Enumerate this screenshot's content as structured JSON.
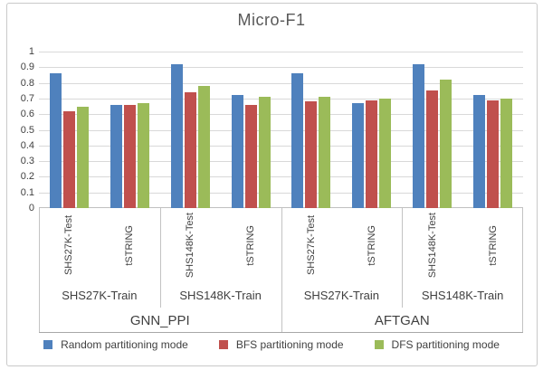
{
  "chart_data": {
    "type": "bar",
    "title": "Micro-F1",
    "ylim": [
      0,
      1
    ],
    "ytick_step": 0.1,
    "yticks_top_to_bottom": [
      "1",
      "0.9",
      "0.8",
      "0.7",
      "0.6",
      "0.5",
      "0.4",
      "0.3",
      "0.2",
      "0.1",
      "0"
    ],
    "grid": true,
    "legend_position": "bottom",
    "categories": [
      "SHS27K-Test",
      "tSTRING",
      "SHS148K-Test",
      "tSTRING",
      "SHS27K-Test",
      "tSTRING",
      "SHS148K-Test",
      "tSTRING"
    ],
    "category_groups": [
      {
        "label": "SHS27K-Train",
        "span": 2
      },
      {
        "label": "SHS148K-Train",
        "span": 2
      },
      {
        "label": "SHS27K-Train",
        "span": 2
      },
      {
        "label": "SHS148K-Train",
        "span": 2
      }
    ],
    "category_supergroups": [
      {
        "label": "GNN_PPI",
        "span": 4
      },
      {
        "label": "AFTGAN",
        "span": 4
      }
    ],
    "series": [
      {
        "name": "Random partitioning mode",
        "color": "#4F81BD",
        "values": [
          0.86,
          0.66,
          0.92,
          0.72,
          0.86,
          0.67,
          0.92,
          0.72
        ]
      },
      {
        "name": "BFS partitioning mode",
        "color": "#C0504D",
        "values": [
          0.62,
          0.66,
          0.74,
          0.66,
          0.68,
          0.69,
          0.75,
          0.69
        ]
      },
      {
        "name": "DFS partitioning mode",
        "color": "#9BBB59",
        "values": [
          0.65,
          0.67,
          0.78,
          0.71,
          0.71,
          0.7,
          0.82,
          0.7
        ]
      }
    ],
    "colors": {
      "gridline": "#D9D9D9",
      "axis_table_border": "#C3C3C3",
      "title_text": "#595959",
      "label_text": "#404040",
      "frame_border": "#C9C9C9"
    }
  }
}
